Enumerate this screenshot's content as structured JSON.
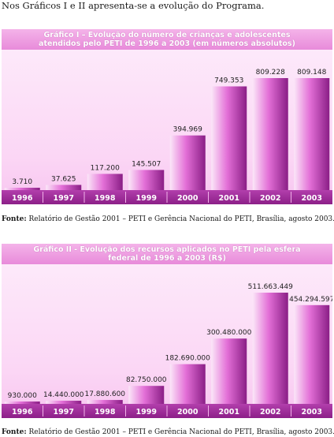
{
  "intro_text": "Nos Gráficos I e II apresenta-se a evolução do Programa.",
  "chart_data": [
    {
      "type": "bar",
      "title": "Gráfico I – Evolução do número de crianças e adolescentes atendidos pelo PETI de 1996 a 2003 (em números absolutos)",
      "title_line1": "Gráfico I – Evolução do número de crianças e adolescentes",
      "title_line2": "atendidos pelo PETI de 1996 a 2003 (em números absolutos)",
      "categories": [
        "1996",
        "1997",
        "1998",
        "1999",
        "2000",
        "2001",
        "2002",
        "2003"
      ],
      "values": [
        3710,
        37625,
        117200,
        145507,
        394969,
        749353,
        809228,
        809148
      ],
      "value_labels": [
        "3.710",
        "37.625",
        "117.200",
        "145.507",
        "394.969",
        "749.353",
        "809.228",
        "809.148"
      ],
      "ylim": [
        0,
        809228
      ],
      "xlabel": "",
      "ylabel": "",
      "colors": {
        "bar_light": "#fbe6f8",
        "bar_mid": "#e36fd7",
        "bar_dark": "#8a1e86",
        "axis_bar": "#8c1f88",
        "header": "#ee9fe2"
      }
    },
    {
      "type": "bar",
      "title": "Gráfico II - Evolução dos recursos aplicados no PETI pela esfera federal de 1996 a 2003 (R$)",
      "title_line1": "Gráfico II - Evolução dos recursos aplicados no PETI pela esfera",
      "title_line2": "federal de 1996 a 2003 (R$)",
      "categories": [
        "1996",
        "1997",
        "1998",
        "1999",
        "2000",
        "2001",
        "2002",
        "2003"
      ],
      "values": [
        930000,
        14440000,
        17880600,
        82750000,
        182690000,
        300480000,
        511663449,
        454294597
      ],
      "value_labels": [
        "930.000",
        "14.440.000",
        "17.880.600",
        "82.750.000",
        "182.690.000",
        "300.480.000",
        "511.663.449",
        "454.294.597"
      ],
      "ylim": [
        0,
        511663449
      ],
      "xlabel": "",
      "ylabel": "",
      "colors": {
        "bar_light": "#fbe6f8",
        "bar_mid": "#e36fd7",
        "bar_dark": "#8a1e86",
        "axis_bar": "#8c1f88",
        "header": "#ee9fe2"
      }
    }
  ],
  "sources": [
    {
      "label": "Fonte:",
      "text": " Relatório de Gestão 2001 – PETI e Gerência Nacional do PETI, Brasília, agosto 2003.",
      "note": "17"
    },
    {
      "label": "Fonte:",
      "text": " Relatório de Gestão 2001 – PETI e Gerência Nacional do PETI, Brasília, agosto 2003.",
      "note": "18"
    }
  ]
}
